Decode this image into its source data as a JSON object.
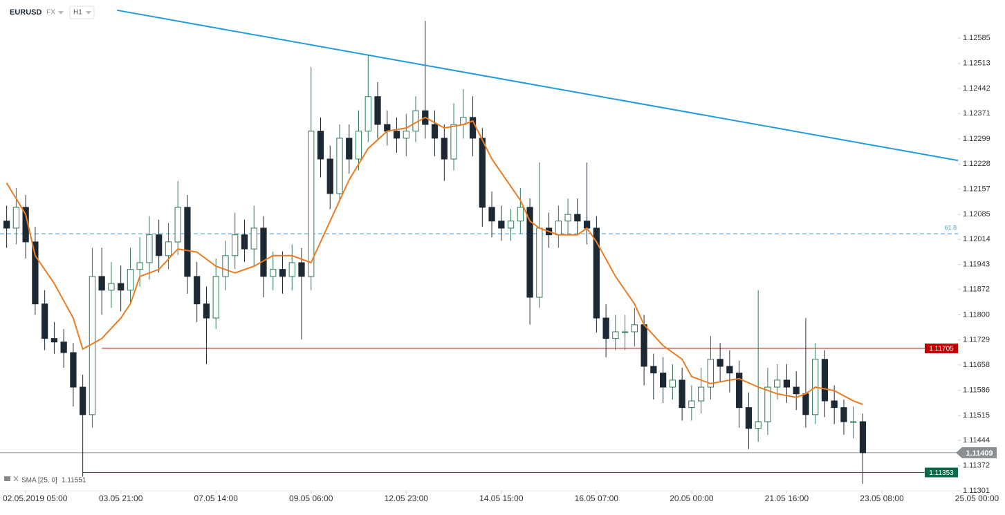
{
  "header": {
    "symbol": "EURUSD",
    "market": "FX",
    "interval": "H1"
  },
  "chart_data": {
    "type": "candlestick",
    "xlim": [
      -0.7,
      100
    ],
    "xticks": [
      {
        "value": 2,
        "label": "02.05.2019 05:00"
      },
      {
        "value": 12,
        "label": "03.05 21:00"
      },
      {
        "value": 22,
        "label": "07.05 14:00"
      },
      {
        "value": 32,
        "label": "09.05 06:00"
      },
      {
        "value": 42,
        "label": "12.05 23:00"
      },
      {
        "value": 52,
        "label": "14.05 15:00"
      },
      {
        "value": 62,
        "label": "16.05 07:00"
      },
      {
        "value": 72,
        "label": "20.05 00:00"
      },
      {
        "value": 82,
        "label": "21.05 16:00"
      },
      {
        "value": 92,
        "label": "23.05 08:00"
      },
      {
        "value": 102,
        "label": "25.05 00:00"
      }
    ],
    "ylim": [
      1.11301,
      1.12693
    ],
    "yticks": [
      1.12585,
      1.12513,
      1.12442,
      1.12371,
      1.12299,
      1.12228,
      1.12157,
      1.12085,
      1.12014,
      1.11943,
      1.11872,
      {
        "value": 1.118,
        "label": "1.11800"
      },
      1.11729,
      1.11658,
      1.11586,
      1.11515,
      1.11444,
      1.11372,
      1.11301
    ],
    "up_color": "#2a7a52",
    "down_color": "#1c2833",
    "open": [
      1.12066,
      1.12046,
      1.12105,
      1.12007,
      1.11831,
      1.11733,
      1.11723,
      1.11693,
      1.11595,
      1.11517,
      1.11909,
      1.1187,
      1.11889,
      1.1187,
      1.11929,
      1.11948,
      1.12027,
      1.11968,
      1.12007,
      1.12105,
      1.11909,
      1.11831,
      1.11791,
      1.11909,
      1.11968,
      1.12027,
      1.11987,
      1.12046,
      1.11909,
      1.11929,
      1.11909,
      1.11948,
      1.11909,
      1.12321,
      1.12242,
      1.12144,
      1.12301,
      1.12242,
      1.12321,
      1.12419,
      1.1234,
      1.12321,
      1.12301,
      1.12321,
      1.12379,
      1.1234,
      1.12301,
      1.12242,
      1.1234,
      1.1236,
      1.12301,
      1.12105,
      1.12066,
      1.12046,
      1.12066,
      1.12105,
      1.1185,
      1.12046,
      1.12027,
      1.12066,
      1.12085,
      1.12066,
      1.12046,
      1.11791,
      1.11733,
      1.11752,
      1.11752,
      1.11772,
      1.11654,
      1.11635,
      1.11595,
      1.11615,
      1.11537,
      1.11556,
      1.11595,
      1.11674,
      1.11654,
      1.11635,
      1.11537,
      1.11478,
      1.11497,
      1.11595,
      1.11615,
      1.11595,
      1.11576,
      1.11517,
      1.11674,
      1.11556,
      1.11537,
      1.11497,
      1.11497
    ],
    "high": [
      1.1211,
      1.1216,
      1.1214,
      1.1205,
      1.1187,
      1.1178,
      1.1176,
      1.1172,
      1.1163,
      1.1199,
      1.1199,
      1.1195,
      1.1194,
      1.1199,
      1.1202,
      1.1208,
      1.1207,
      1.1206,
      1.1218,
      1.1214,
      1.1195,
      1.1188,
      1.1196,
      1.1201,
      1.1209,
      1.1207,
      1.1211,
      1.1208,
      1.1198,
      1.1198,
      1.12,
      1.1199,
      1.12503,
      1.1236,
      1.1228,
      1.1234,
      1.1234,
      1.1238,
      1.12536,
      1.1246,
      1.1238,
      1.1236,
      1.1237,
      1.1242,
      1.12634,
      1.1238,
      1.1234,
      1.124,
      1.1244,
      1.1242,
      1.1233,
      1.1215,
      1.1211,
      1.121,
      1.1216,
      1.1213,
      1.12232,
      1.1209,
      1.1211,
      1.1213,
      1.1213,
      1.12232,
      1.1208,
      1.1183,
      1.118,
      1.118,
      1.1182,
      1.118,
      1.1169,
      1.1168,
      1.1166,
      1.1165,
      1.116,
      1.1165,
      1.1174,
      1.1172,
      1.117,
      1.1167,
      1.1158,
      1.1187,
      1.1165,
      1.1166,
      1.1166,
      1.1164,
      1.11791,
      1.1172,
      1.117,
      1.116,
      1.1156,
      1.1154,
      1.1152
    ],
    "low": [
      1.1199,
      1.12,
      1.1196,
      1.118,
      1.117,
      1.1169,
      1.1165,
      1.1154,
      1.11341,
      1.1148,
      1.118,
      1.1182,
      1.1181,
      1.1183,
      1.1188,
      1.119,
      1.1192,
      1.1193,
      1.1197,
      1.1186,
      1.1178,
      1.1166,
      1.1176,
      1.1187,
      1.1193,
      1.1195,
      1.1194,
      1.1185,
      1.1187,
      1.1186,
      1.1187,
      1.1173,
      1.1187,
      1.1219,
      1.121,
      1.1212,
      1.122,
      1.1221,
      1.1229,
      1.123,
      1.1228,
      1.1226,
      1.1225,
      1.1229,
      1.123,
      1.1225,
      1.1218,
      1.1221,
      1.123,
      1.1225,
      1.1205,
      1.1202,
      1.1201,
      1.1201,
      1.1203,
      1.11772,
      1.1182,
      1.1199,
      1.1199,
      1.1203,
      1.1203,
      1.12,
      1.1175,
      1.1168,
      1.117,
      1.117,
      1.1171,
      1.116,
      1.1156,
      1.1155,
      1.1156,
      1.115,
      1.115,
      1.1152,
      1.1156,
      1.1161,
      1.1158,
      1.1148,
      1.1142,
      1.1144,
      1.1146,
      1.1156,
      1.1155,
      1.1153,
      1.1148,
      1.1149,
      1.1151,
      1.1149,
      1.1146,
      1.1145,
      1.11321
    ],
    "close": [
      1.12046,
      1.12105,
      1.12007,
      1.11831,
      1.11733,
      1.11723,
      1.11693,
      1.11595,
      1.11517,
      1.11909,
      1.1187,
      1.11889,
      1.1187,
      1.11929,
      1.11948,
      1.12027,
      1.11968,
      1.12007,
      1.12105,
      1.11909,
      1.11831,
      1.11791,
      1.11909,
      1.11968,
      1.12027,
      1.11987,
      1.12046,
      1.11909,
      1.11929,
      1.11909,
      1.11948,
      1.11909,
      1.12321,
      1.12242,
      1.12144,
      1.12301,
      1.12242,
      1.12321,
      1.12419,
      1.1234,
      1.12321,
      1.12301,
      1.12321,
      1.12379,
      1.1234,
      1.12301,
      1.12242,
      1.1234,
      1.1236,
      1.12301,
      1.12105,
      1.12066,
      1.12046,
      1.12066,
      1.12105,
      1.1185,
      1.12046,
      1.12027,
      1.12066,
      1.12085,
      1.12066,
      1.12046,
      1.11791,
      1.11733,
      1.11752,
      1.11752,
      1.11772,
      1.11654,
      1.11635,
      1.11595,
      1.11615,
      1.11537,
      1.11556,
      1.11595,
      1.11674,
      1.11654,
      1.11635,
      1.11537,
      1.11478,
      1.11497,
      1.11595,
      1.11615,
      1.11595,
      1.11576,
      1.11517,
      1.11674,
      1.11556,
      1.11537,
      1.11497,
      1.11497,
      1.11409
    ],
    "sma": {
      "name": "SMA [25, 0]",
      "last": 1.11551,
      "color": "#ee7a1e",
      "x": [
        0,
        2,
        3,
        5,
        7,
        8,
        10,
        12,
        13,
        14,
        16,
        18,
        20,
        22,
        24,
        26,
        28,
        30,
        32,
        34,
        36,
        38,
        40,
        42,
        44,
        46,
        48,
        49,
        51,
        53,
        54,
        55,
        56,
        58,
        60,
        61,
        62,
        64,
        66,
        67,
        69,
        71,
        72,
        74,
        76,
        77,
        79,
        81,
        83,
        84,
        85,
        87,
        89,
        90
      ],
      "values": [
        1.12174,
        1.12085,
        1.11968,
        1.11889,
        1.11791,
        1.11703,
        1.11733,
        1.11791,
        1.11831,
        1.11909,
        1.11929,
        1.11987,
        1.11978,
        1.11938,
        1.11919,
        1.11938,
        1.11968,
        1.11968,
        1.11948,
        1.12066,
        1.12183,
        1.12272,
        1.12321,
        1.1233,
        1.1236,
        1.1233,
        1.1234,
        1.1235,
        1.12242,
        1.12164,
        1.12125,
        1.12066,
        1.12046,
        1.12027,
        1.12027,
        1.12046,
        1.12007,
        1.11909,
        1.11831,
        1.11772,
        1.11713,
        1.11674,
        1.11625,
        1.11605,
        1.11615,
        1.11619,
        1.11595,
        1.11576,
        1.11566,
        1.11576,
        1.11595,
        1.11585,
        1.11556,
        1.11546
      ]
    },
    "trendline": {
      "color": "#1e9be0",
      "x": [
        11.6,
        100
      ],
      "values": [
        1.12664,
        1.12238
      ]
    },
    "levels": [
      {
        "value": 1.1203,
        "label": "61.8",
        "color": "#3aa0d0",
        "dashed": true
      },
      {
        "value": 1.11705,
        "color": "#c00000",
        "from": 10,
        "tag": "plot"
      },
      {
        "value": 1.11409,
        "color": "#8a8f94",
        "tag": "axis"
      },
      {
        "value": 1.11353,
        "color": "#0b6b48",
        "from": 8,
        "tag": "plot"
      }
    ]
  }
}
